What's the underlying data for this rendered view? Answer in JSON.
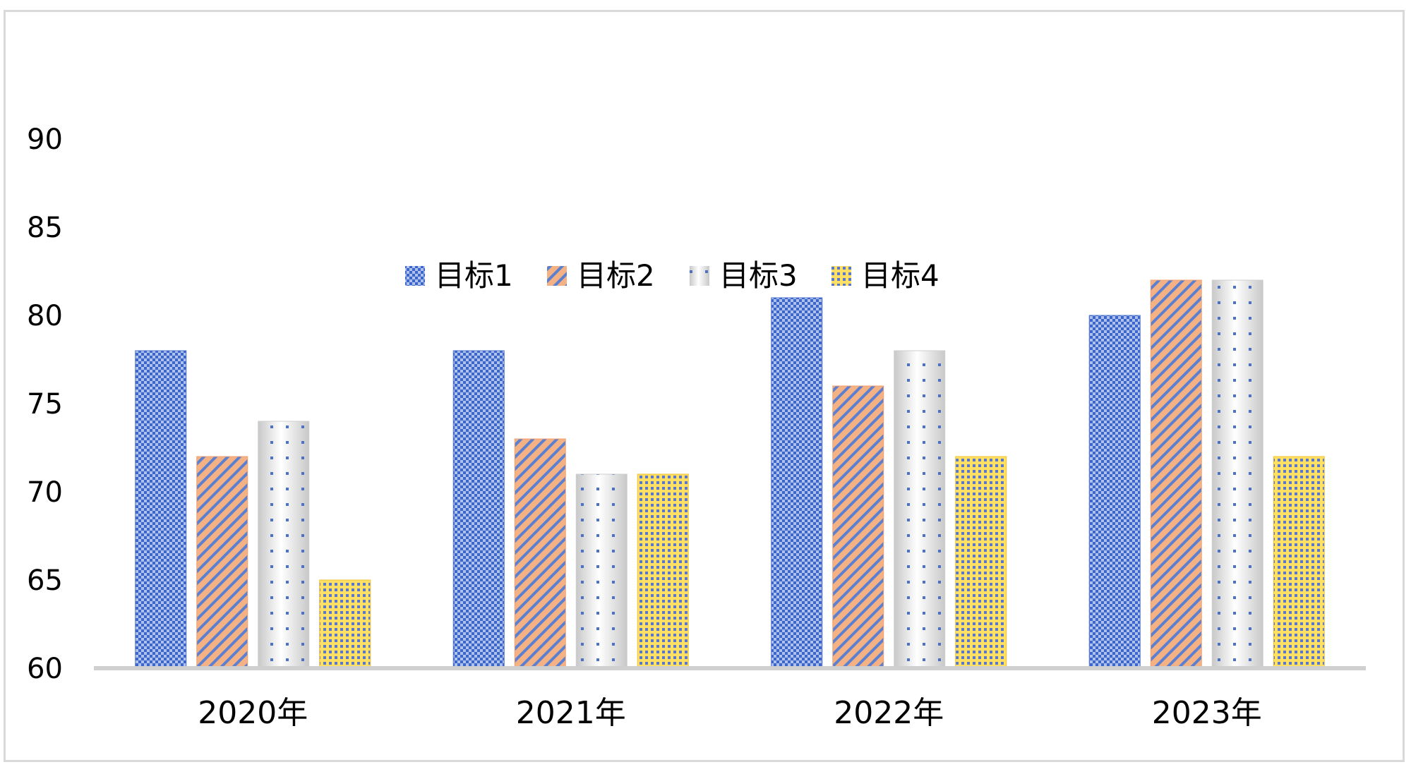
{
  "chart_data": {
    "type": "bar",
    "title": "",
    "xlabel": "",
    "ylabel": "",
    "categories": [
      "2020年",
      "2021年",
      "2022年",
      "2023年"
    ],
    "series": [
      {
        "name": "目标1",
        "values": [
          78,
          78,
          81,
          80
        ],
        "color": "#4472c4",
        "pattern": "checker"
      },
      {
        "name": "目标2",
        "values": [
          72,
          73,
          76,
          82
        ],
        "color": "#ed7d31",
        "pattern": "diagonal"
      },
      {
        "name": "目标3",
        "values": [
          74,
          71,
          78,
          82
        ],
        "color": "#a5a5a5",
        "pattern": "dots"
      },
      {
        "name": "目标4",
        "values": [
          65,
          71,
          72,
          72
        ],
        "color": "#ffc000",
        "pattern": "dense-dots"
      }
    ],
    "ylim": [
      60,
      90
    ],
    "yticks": [
      60,
      65,
      70,
      75,
      80,
      85,
      90
    ],
    "grid": false,
    "legend_position": "top-center"
  }
}
